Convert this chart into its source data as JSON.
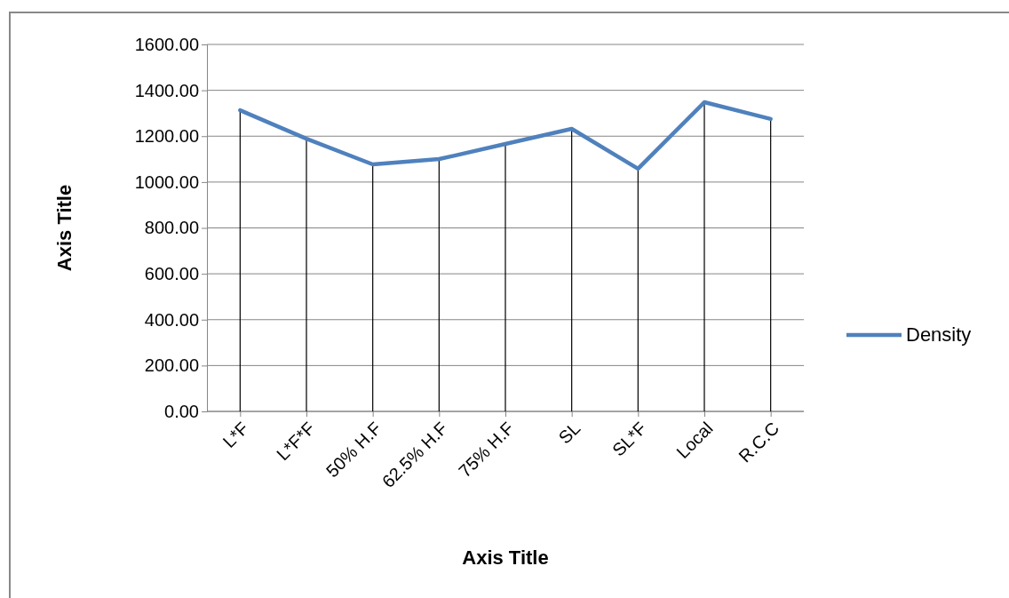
{
  "chart_data": {
    "type": "line",
    "xlabel": "Axis Title",
    "ylabel": "Axis Title",
    "categories": [
      "L*F",
      "L*F*F",
      "50% H.F",
      "62.5% H.F",
      "75% H.F",
      "SL",
      "SL*F",
      "Local",
      "R.C.C"
    ],
    "series": [
      {
        "type": "bar",
        "color": "#000000",
        "values": [
          1313,
          1189,
          1077,
          1100,
          1166,
          1232,
          1058,
          1348,
          1275
        ]
      },
      {
        "name": "Density",
        "color": "#4f81bd",
        "values": [
          1313,
          1189,
          1077,
          1100,
          1166,
          1232,
          1058,
          1348,
          1275
        ]
      }
    ],
    "ylim": [
      0,
      1600
    ],
    "yticks": [
      {
        "value": 0,
        "label": "0.00"
      },
      {
        "value": 200,
        "label": "200.00"
      },
      {
        "value": 400,
        "label": "400.00"
      },
      {
        "value": 600,
        "label": "600.00"
      },
      {
        "value": 800,
        "label": "800.00"
      },
      {
        "value": 1000,
        "label": "1000.00"
      },
      {
        "value": 1200,
        "label": "1200.00"
      },
      {
        "value": 1400,
        "label": "1400.00"
      },
      {
        "value": 1600,
        "label": "1600.00"
      }
    ],
    "grid": "y",
    "legend": "right"
  }
}
